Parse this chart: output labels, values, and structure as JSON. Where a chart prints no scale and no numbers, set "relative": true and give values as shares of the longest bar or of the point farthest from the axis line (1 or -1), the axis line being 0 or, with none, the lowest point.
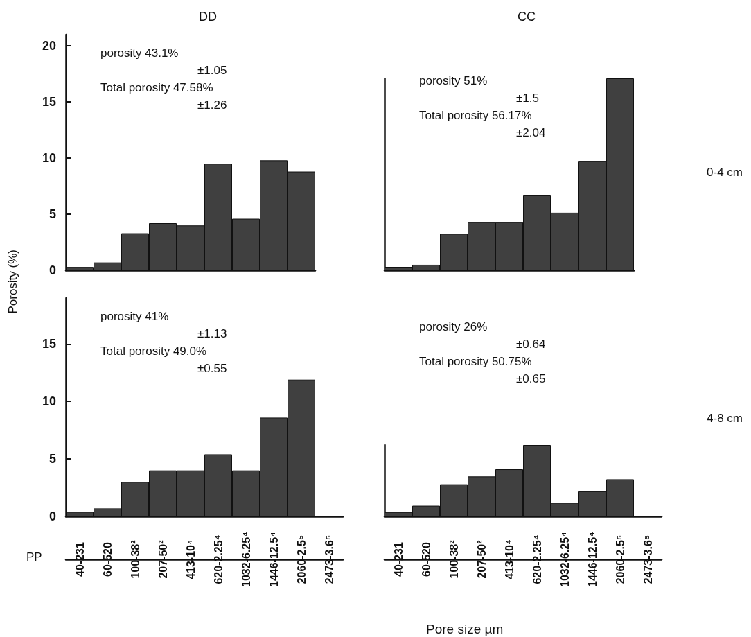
{
  "chart_data": [
    {
      "type": "bar",
      "title": "DD",
      "categories": [
        null,
        null,
        null,
        null,
        null,
        null,
        null,
        null,
        null
      ],
      "values": [
        0.3,
        0.7,
        3.3,
        4.2,
        4.0,
        9.5,
        4.6,
        9.8,
        8.8
      ],
      "color": "#404040",
      "ylim": [
        0,
        21
      ],
      "yticks": [
        0,
        5,
        10,
        15,
        20
      ],
      "tick_labels": "y",
      "annotations": [
        "porosity 43.1%",
        "±1.05",
        "Total porosity 47.58%",
        "±1.26"
      ]
    },
    {
      "type": "bar",
      "title": "CC",
      "relative": true,
      "categories": [
        null,
        null,
        null,
        null,
        null,
        null,
        null,
        null,
        null
      ],
      "values": [
        0.018,
        0.029,
        0.19,
        0.25,
        0.25,
        0.39,
        0.3,
        0.57,
        1
      ],
      "color": "#404040",
      "tick_labels": false,
      "annotations": [
        "porosity 51%",
        "±1.5",
        "Total porosity 56.17%",
        "±2.04",
        "0-4 cm"
      ]
    },
    {
      "type": "bar",
      "ylabel": "Porosity (%)",
      "categories": [
        "40-231",
        "60-520",
        "100-38²",
        "207-50²",
        "413-10⁴",
        "620-2.25⁴",
        "1032-6.25⁴",
        "1446-12.5⁴",
        "2060-2.5⁵",
        "2473-3.6⁵"
      ],
      "values": [
        0.4,
        0.7,
        3.0,
        4.0,
        4.0,
        5.4,
        4.0,
        8.6,
        11.9,
        null
      ],
      "color": "#404040",
      "ylim": [
        0,
        19
      ],
      "yticks": [
        0,
        5,
        10,
        15
      ],
      "annotations": [
        "porosity 41%",
        "±1.13",
        "Total porosity 49.0%",
        "±0.55",
        "PP"
      ]
    },
    {
      "type": "bar",
      "xlabel": "Pore size µm",
      "relative": true,
      "categories": [
        "40-231",
        "60-520",
        "100-38²",
        "207-50²",
        "413-10⁴",
        "620-2.25⁴",
        "1032-6.25⁴",
        "1446-12.5⁴",
        "2060-2.5⁵",
        "2473-3.6⁵"
      ],
      "values": [
        0.06,
        0.15,
        0.45,
        0.56,
        0.66,
        1,
        0.19,
        0.35,
        0.52,
        null
      ],
      "color": "#404040",
      "tick_labels": "x",
      "annotations": [
        "porosity 26%",
        "±0.64",
        "Total porosity 50.75%",
        "±0.65",
        "4-8 cm"
      ]
    }
  ]
}
